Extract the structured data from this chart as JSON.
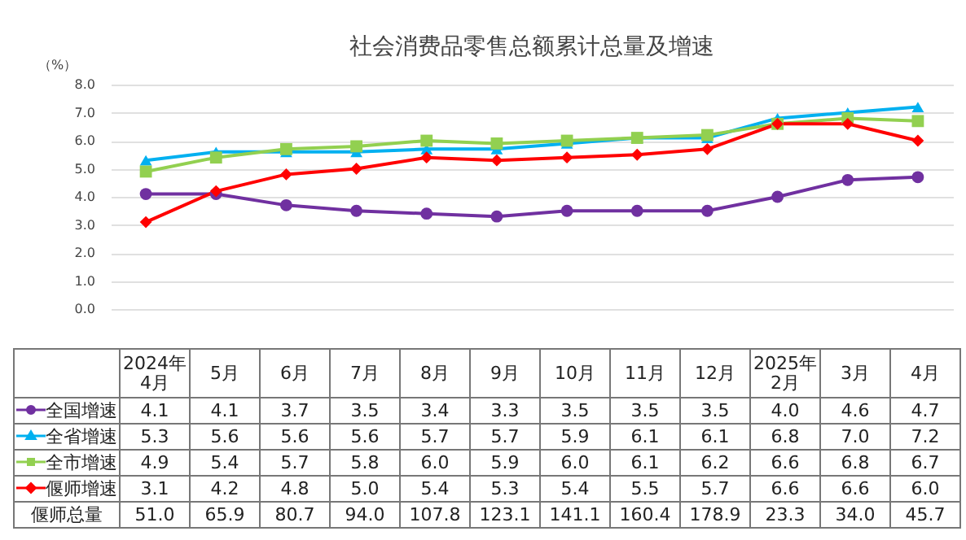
{
  "chart_data": {
    "type": "line",
    "title": "社会消费品零售总额累计总量及增速",
    "ylabel": "（%）",
    "categories": [
      "2024年4月",
      "5月",
      "6月",
      "7月",
      "8月",
      "9月",
      "10月",
      "11月",
      "12月",
      "2025年2月",
      "3月",
      "4月"
    ],
    "series": [
      {
        "name": "全国增速",
        "color": "#7030a0",
        "marker": "circle",
        "values": [
          4.1,
          4.1,
          3.7,
          3.5,
          3.4,
          3.3,
          3.5,
          3.5,
          3.5,
          4.0,
          4.6,
          4.7
        ],
        "value_labels": [
          "4.1",
          "4.1",
          "3.7",
          "3.5",
          "3.4",
          "3.3",
          "3.5",
          "3.5",
          "3.5",
          "4.0",
          "4.6",
          "4.7"
        ]
      },
      {
        "name": "全省增速",
        "color": "#00b0f0",
        "marker": "triangle",
        "values": [
          5.3,
          5.6,
          5.6,
          5.6,
          5.7,
          5.7,
          5.9,
          6.1,
          6.1,
          6.8,
          7.0,
          7.2
        ],
        "value_labels": [
          "5.3",
          "5.6",
          "5.6",
          "5.6",
          "5.7",
          "5.7",
          "5.9",
          "6.1",
          "6.1",
          "6.8",
          "7.0",
          "7.2"
        ]
      },
      {
        "name": "全市增速",
        "color": "#92d050",
        "marker": "square",
        "values": [
          4.9,
          5.4,
          5.7,
          5.8,
          6.0,
          5.9,
          6.0,
          6.1,
          6.2,
          6.6,
          6.8,
          6.7
        ],
        "value_labels": [
          "4.9",
          "5.4",
          "5.7",
          "5.8",
          "6.0",
          "5.9",
          "6.0",
          "6.1",
          "6.2",
          "6.6",
          "6.8",
          "6.7"
        ]
      },
      {
        "name": "偃师增速",
        "color": "#ff0000",
        "marker": "diamond",
        "values": [
          3.1,
          4.2,
          4.8,
          5.0,
          5.4,
          5.3,
          5.4,
          5.5,
          5.7,
          6.6,
          6.6,
          6.0
        ],
        "value_labels": [
          "3.1",
          "4.2",
          "4.8",
          "5.0",
          "5.4",
          "5.3",
          "5.4",
          "5.5",
          "5.7",
          "6.6",
          "6.6",
          "6.0"
        ]
      }
    ],
    "ylim": [
      0,
      8
    ],
    "yticks": [
      {
        "value": 0,
        "label": "0.0"
      },
      {
        "value": 1,
        "label": "1.0"
      },
      {
        "value": 2,
        "label": "2.0"
      },
      {
        "value": 3,
        "label": "3.0"
      },
      {
        "value": 4,
        "label": "4.0"
      },
      {
        "value": 5,
        "label": "5.0"
      },
      {
        "value": 6,
        "label": "6.0"
      },
      {
        "value": 7,
        "label": "7.0"
      },
      {
        "value": 8,
        "label": "8.0"
      }
    ],
    "grid": "y",
    "tick_labels": "y",
    "legend": "bottom",
    "annotations": [
      "偃师总量",
      "51.0",
      "65.9",
      "80.7",
      "94.0",
      "107.8",
      "123.1",
      "141.1",
      "160.4",
      "178.9",
      "23.3",
      "34.0",
      "45.7"
    ]
  }
}
